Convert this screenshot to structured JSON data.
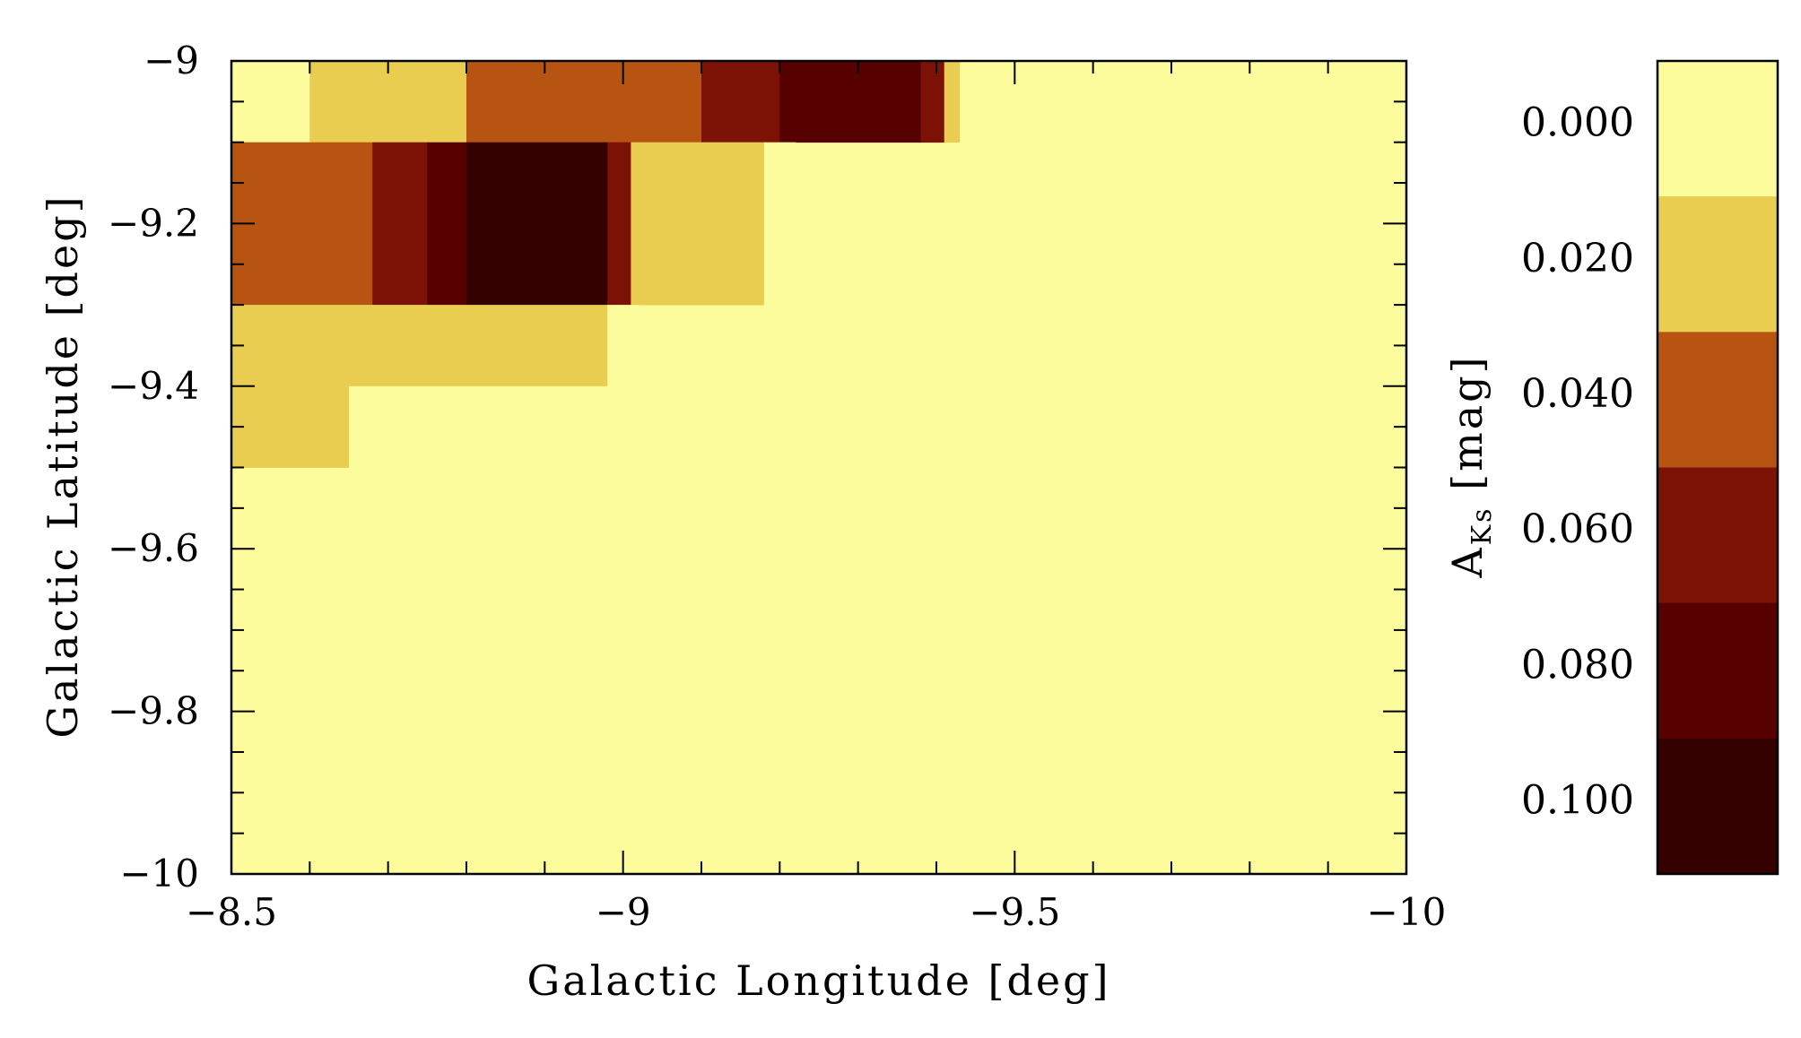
{
  "chart_data": {
    "type": "heatmap",
    "title": "",
    "xlabel": "Galactic Longitude [deg]",
    "ylabel": "Galactic Latitude [deg]",
    "xlim": [
      -8.5,
      -10
    ],
    "ylim": [
      -10,
      -9
    ],
    "x_ticks": [
      -8.5,
      -9,
      -9.5,
      -10
    ],
    "x_tick_labels": [
      "−8.5",
      "−9",
      "−9.5",
      "−10"
    ],
    "y_ticks": [
      -9,
      -9.2,
      -9.4,
      -9.6,
      -9.8,
      -10
    ],
    "y_tick_labels": [
      "−9",
      "−9.2",
      "−9.4",
      "−9.6",
      "−9.8",
      "−10"
    ],
    "background_value": 0.0,
    "rows": [
      {
        "b_range": [
          -9.1,
          -9.0
        ],
        "segments": [
          {
            "l": [
              -8.5,
              -8.55
            ],
            "value": -0.004
          },
          {
            "l": [
              -8.55,
              -8.6
            ],
            "value": 0.006
          },
          {
            "l": [
              -8.6,
              -8.7
            ],
            "value": 0.02
          },
          {
            "l": [
              -8.7,
              -8.8
            ],
            "value": 0.026
          },
          {
            "l": [
              -8.8,
              -8.9
            ],
            "value": 0.032
          },
          {
            "l": [
              -8.9,
              -9.1
            ],
            "value": 0.042
          },
          {
            "l": [
              -9.1,
              -9.2
            ],
            "value": 0.062
          },
          {
            "l": [
              -9.2,
              -9.38
            ],
            "value": 0.075
          },
          {
            "l": [
              -9.38,
              -9.41
            ],
            "value": 0.06
          },
          {
            "l": [
              -9.41,
              -9.43
            ],
            "value": 0.018
          },
          {
            "l": [
              -9.43,
              -9.45
            ],
            "value": 0.008
          }
        ]
      },
      {
        "b_range": [
          -9.3,
          -9.1
        ],
        "segments": [
          {
            "l": [
              -8.5,
              -8.68
            ],
            "value": 0.042
          },
          {
            "l": [
              -8.68,
              -8.75
            ],
            "value": 0.068
          },
          {
            "l": [
              -8.75,
              -8.8
            ],
            "value": 0.076
          },
          {
            "l": [
              -8.8,
              -8.98
            ],
            "value": 0.092
          },
          {
            "l": [
              -8.98,
              -9.01
            ],
            "value": 0.06
          },
          {
            "l": [
              -9.01,
              -9.18
            ],
            "value": 0.024
          },
          {
            "l": [
              -9.18,
              -9.22
            ],
            "value": 0.008
          }
        ]
      },
      {
        "b_range": [
          -9.4,
          -9.3
        ],
        "segments": [
          {
            "l": [
              -8.5,
              -8.98
            ],
            "value": 0.018
          },
          {
            "l": [
              -8.98,
              -9.02
            ],
            "value": 0.006
          }
        ]
      },
      {
        "b_range": [
          -9.5,
          -9.4
        ],
        "segments": [
          {
            "l": [
              -8.5,
              -8.65
            ],
            "value": 0.012
          },
          {
            "l": [
              -8.65,
              -8.98
            ],
            "value": 0.0
          },
          {
            "l": [
              -8.98,
              -9.01
            ],
            "value": 0.004
          }
        ]
      }
    ],
    "colorbar": {
      "label": "A",
      "label_subscript": "Ks",
      "label_unit": "[mag]",
      "tick_labels": [
        "0.000",
        "0.020",
        "0.040",
        "0.060",
        "0.080",
        "0.100"
      ],
      "bands": [
        {
          "range": [
            -0.01,
            0.01
          ],
          "color": "#fdfc9c"
        },
        {
          "range": [
            0.01,
            0.03
          ],
          "color": "#e8cd50"
        },
        {
          "range": [
            0.03,
            0.05
          ],
          "color": "#b85412"
        },
        {
          "range": [
            0.05,
            0.07
          ],
          "color": "#7b1205"
        },
        {
          "range": [
            0.07,
            0.09
          ],
          "color": "#560000"
        },
        {
          "range": [
            0.09,
            0.11
          ],
          "color": "#340000"
        }
      ]
    },
    "grid": false,
    "legend": "colorbar-right"
  }
}
